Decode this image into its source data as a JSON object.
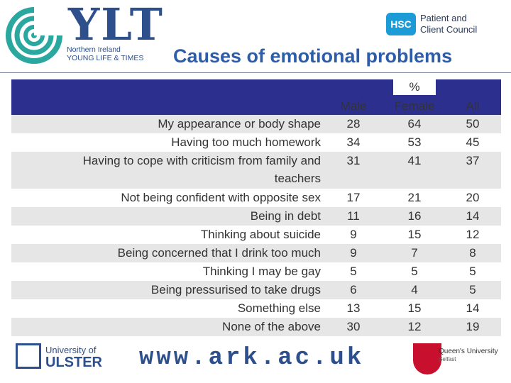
{
  "header": {
    "ylt_name": "YLT",
    "ylt_sub1": "Northern Ireland",
    "ylt_sub2": "YOUNG LIFE & TIMES",
    "hsc_badge": "HSC",
    "hsc_line1": "Patient and",
    "hsc_line2": "Client Council",
    "title": "Causes of emotional problems"
  },
  "table": {
    "percent_label": "%",
    "columns": [
      "Male",
      "Female",
      "All"
    ],
    "rows": [
      {
        "label": "My appearance or body shape",
        "male": "28",
        "female": "64",
        "all": "50"
      },
      {
        "label": "Having too much homework",
        "male": "34",
        "female": "53",
        "all": "45"
      },
      {
        "label_line1": "Having to cope with criticism from family and",
        "label_line2": "teachers",
        "male": "31",
        "female": "41",
        "all": "37"
      },
      {
        "label": "Not being confident with opposite sex",
        "male": "17",
        "female": "21",
        "all": "20"
      },
      {
        "label": "Being in debt",
        "male": "11",
        "female": "16",
        "all": "14"
      },
      {
        "label": "Thinking about suicide",
        "male": "9",
        "female": "15",
        "all": "12"
      },
      {
        "label": "Being concerned that I drink too much",
        "male": "9",
        "female": "7",
        "all": "8"
      },
      {
        "label": "Thinking I may be gay",
        "male": "5",
        "female": "5",
        "all": "5"
      },
      {
        "label": "Being pressurised to take drugs",
        "male": "6",
        "female": "4",
        "all": "5"
      },
      {
        "label": "Something else",
        "male": "13",
        "female": "15",
        "all": "14"
      },
      {
        "label": "None of the above",
        "male": "30",
        "female": "12",
        "all": "19"
      }
    ]
  },
  "footer": {
    "ulster_line1": "University of",
    "ulster_line2": "ULSTER",
    "url": "www.ark.ac.uk",
    "qub_line1": "Queen's University",
    "qub_line2": "Belfast"
  },
  "colors": {
    "header_bar": "#2c2f8e",
    "title": "#2d5da8",
    "shade": "#e6e6e6"
  }
}
